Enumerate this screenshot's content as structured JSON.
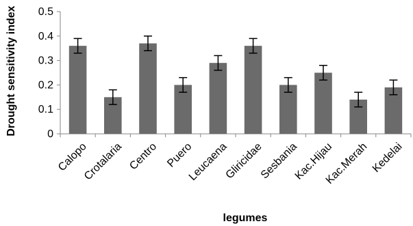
{
  "chart_data": {
    "type": "bar",
    "xlabel": "legumes",
    "ylabel": "Drought sensitivity index",
    "ylim": [
      0,
      0.5
    ],
    "yticks": [
      "0",
      "0.1",
      "0.2",
      "0.3",
      "0.4",
      "0.5"
    ],
    "grid": false,
    "legend": "none",
    "bar_color": "#6b6b6b",
    "categories": [
      "Calopo",
      "Crotalaria",
      "Centro",
      "Puero",
      "Leucaena",
      "Gliricidae",
      "Sesbania",
      "Kac.Hijau",
      "Kac.Merah",
      "Kedelai"
    ],
    "values": [
      0.36,
      0.15,
      0.37,
      0.2,
      0.29,
      0.36,
      0.2,
      0.25,
      0.14,
      0.19
    ],
    "errors": [
      0.03,
      0.03,
      0.03,
      0.03,
      0.03,
      0.03,
      0.03,
      0.03,
      0.03,
      0.03
    ]
  }
}
